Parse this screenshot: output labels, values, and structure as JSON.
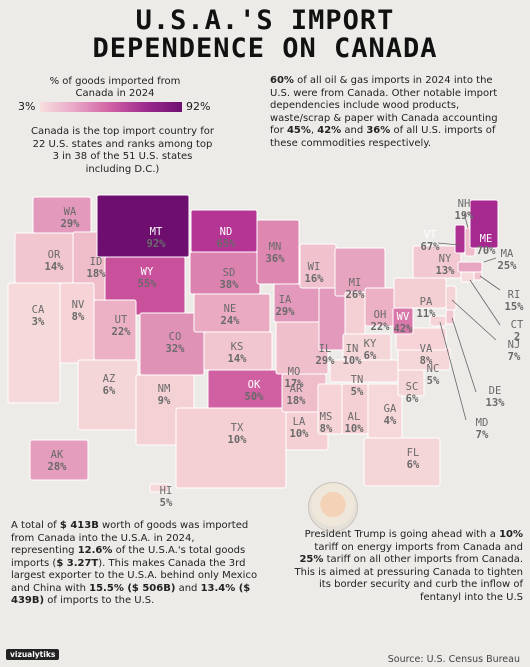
{
  "title_line1": "U.S.A.'S IMPORT",
  "title_line2": "DEPENDENCE ON CANADA",
  "legend": {
    "title": "% of goods imported from Canada in 2024",
    "min": "3%",
    "max": "92%"
  },
  "notes": {
    "rank": "Canada is the top import country for 22 U.S. states and ranks among top 3 in 38 of the 51 U.S. states including D.C.)",
    "oil_bold": "60%",
    "oil_rest": " of all oil & gas imports in 2024 into the U.S. were from Canada. Other notable import dependencies include wood products, waste/scrap & paper with Canada accounting for ",
    "oil_p1": "45%",
    "oil_p2": "42%",
    "oil_and": " and ",
    "oil_p3": "36%",
    "oil_end": " of all U.S. imports of these commodities respectively.",
    "total_a": "A total of ",
    "total_b": "$ 413B",
    "total_c": " worth of goods was imported from Canada into the U.S.A. in 2024, representing ",
    "total_d": "12.6%",
    "total_e": " of the U.S.A.'s total goods imports (",
    "total_f": "$ 3.27T",
    "total_g": "). This makes Canada the 3rd largest exporter to the U.S.A. behind only Mexico and China with ",
    "total_h": "15.5% ($ 506B)",
    "total_i": " and ",
    "total_j": "13.4% ($ 439B)",
    "total_k": " of imports to the U.S.",
    "trump_a": "President Trump is going ahead with a ",
    "trump_b": "10%",
    "trump_c": " tariff on energy imports from Canada and ",
    "trump_d": "25%",
    "trump_e": " tariff on all other imports from Canada. This is aimed at pressuring Canada to tighten its border security and curb the inflow of fentanyl into the U.S"
  },
  "source": "Source: U.S. Census Bureau",
  "logo": "vizualytiks",
  "states": [
    {
      "abbr": "WA",
      "value": "29%"
    },
    {
      "abbr": "OR",
      "value": "14%"
    },
    {
      "abbr": "CA",
      "value": "3%"
    },
    {
      "abbr": "ID",
      "value": "18%"
    },
    {
      "abbr": "NV",
      "value": "8%"
    },
    {
      "abbr": "MT",
      "value": "92%"
    },
    {
      "abbr": "WY",
      "value": "55%"
    },
    {
      "abbr": "UT",
      "value": "22%"
    },
    {
      "abbr": "AZ",
      "value": "6%"
    },
    {
      "abbr": "CO",
      "value": "32%"
    },
    {
      "abbr": "NM",
      "value": "9%"
    },
    {
      "abbr": "ND",
      "value": "65%"
    },
    {
      "abbr": "SD",
      "value": "38%"
    },
    {
      "abbr": "NE",
      "value": "24%"
    },
    {
      "abbr": "KS",
      "value": "14%"
    },
    {
      "abbr": "OK",
      "value": "50%"
    },
    {
      "abbr": "TX",
      "value": "10%"
    },
    {
      "abbr": "MN",
      "value": "36%"
    },
    {
      "abbr": "IA",
      "value": "29%"
    },
    {
      "abbr": "MO",
      "value": "17%"
    },
    {
      "abbr": "AR",
      "value": "18%"
    },
    {
      "abbr": "LA",
      "value": "10%"
    },
    {
      "abbr": "WI",
      "value": "16%"
    },
    {
      "abbr": "IL",
      "value": "29%"
    },
    {
      "abbr": "MI",
      "value": "26%"
    },
    {
      "abbr": "IN",
      "value": "10%"
    },
    {
      "abbr": "OH",
      "value": "22%"
    },
    {
      "abbr": "KY",
      "value": "6%"
    },
    {
      "abbr": "TN",
      "value": "5%"
    },
    {
      "abbr": "MS",
      "value": "8%"
    },
    {
      "abbr": "AL",
      "value": "10%"
    },
    {
      "abbr": "GA",
      "value": "4%"
    },
    {
      "abbr": "FL",
      "value": "6%"
    },
    {
      "abbr": "SC",
      "value": "6%"
    },
    {
      "abbr": "NC",
      "value": "5%"
    },
    {
      "abbr": "VA",
      "value": "8%"
    },
    {
      "abbr": "WV",
      "value": "42%"
    },
    {
      "abbr": "PA",
      "value": "11%"
    },
    {
      "abbr": "NY",
      "value": "13%"
    },
    {
      "abbr": "VT",
      "value": "67%"
    },
    {
      "abbr": "NH",
      "value": "19%"
    },
    {
      "abbr": "ME",
      "value": "70%"
    },
    {
      "abbr": "MA",
      "value": "25%"
    },
    {
      "abbr": "RI",
      "value": "15%"
    },
    {
      "abbr": "CT",
      "value": "2"
    },
    {
      "abbr": "NJ",
      "value": "7%"
    },
    {
      "abbr": "DE",
      "value": "13%"
    },
    {
      "abbr": "MD",
      "value": "7%"
    },
    {
      "abbr": "AK",
      "value": "28%"
    },
    {
      "abbr": "HI",
      "value": "5%"
    }
  ]
}
